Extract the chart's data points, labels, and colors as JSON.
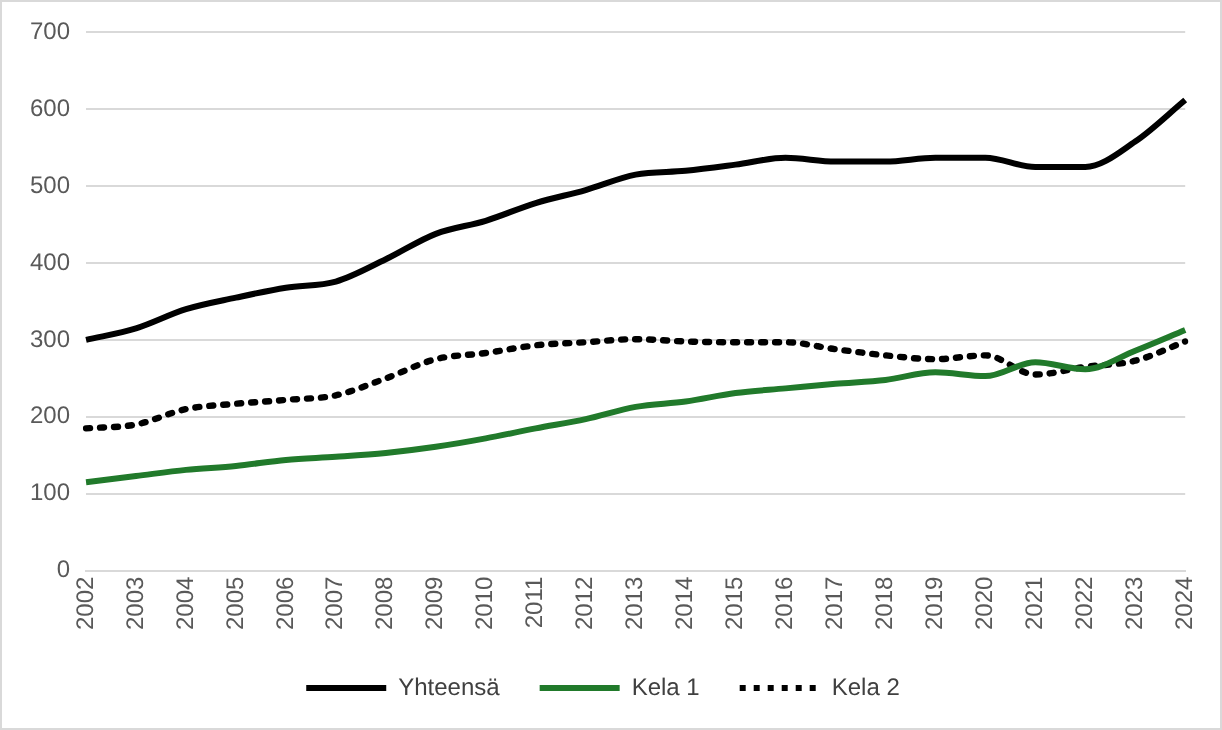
{
  "chart_data": {
    "type": "line",
    "categories": [
      "2002",
      "2003",
      "2004",
      "2005",
      "2006",
      "2007",
      "2008",
      "2009",
      "2010",
      "2011",
      "2012",
      "2013",
      "2014",
      "2015",
      "2016",
      "2017",
      "2018",
      "2019",
      "2020",
      "2021",
      "2022",
      "2023",
      "2024"
    ],
    "series": [
      {
        "name": "Yhteensä",
        "color": "#000000",
        "line_style": "solid",
        "values": [
          300,
          315,
          340,
          355,
          368,
          376,
          405,
          438,
          455,
          478,
          495,
          515,
          520,
          528,
          537,
          532,
          532,
          537,
          537,
          525,
          525,
          558,
          612
        ]
      },
      {
        "name": "Kela 1",
        "color": "#217a2b",
        "line_style": "solid",
        "values": [
          115,
          123,
          131,
          136,
          144,
          148,
          153,
          161,
          172,
          185,
          197,
          213,
          220,
          231,
          237,
          243,
          248,
          258,
          253,
          271,
          262,
          286,
          313
        ]
      },
      {
        "name": "Kela 2",
        "color": "#000000",
        "line_style": "dotted",
        "values": [
          185,
          190,
          210,
          217,
          222,
          228,
          250,
          275,
          283,
          293,
          297,
          301,
          298,
          297,
          297,
          288,
          280,
          275,
          280,
          255,
          265,
          273,
          298
        ]
      }
    ],
    "ylim": [
      0,
      700
    ],
    "yticks": [
      0,
      100,
      200,
      300,
      400,
      500,
      600,
      700
    ],
    "grid": "y",
    "legend": "bottom",
    "marker": "none"
  }
}
